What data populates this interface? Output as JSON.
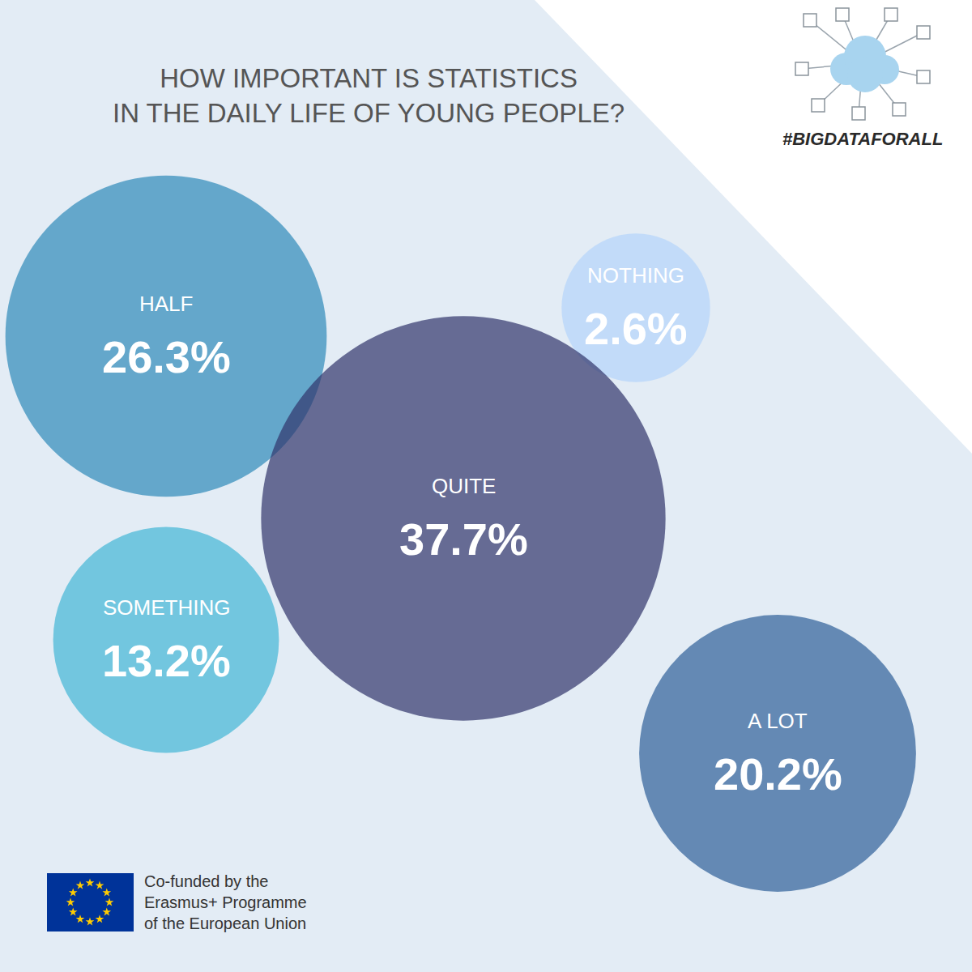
{
  "chart_data": {
    "type": "bubble",
    "title": "HOW IMPORTANT IS STATISTICS\nIN THE DAILY LIFE OF YOUNG PEOPLE?",
    "categories": [
      "HALF",
      "NOTHING",
      "QUITE",
      "SOMETHING",
      "A LOT"
    ],
    "values": [
      26.3,
      2.6,
      37.7,
      13.2,
      20.2
    ],
    "value_labels": [
      "26.3%",
      "2.6%",
      "37.7%",
      "13.2%",
      "20.2%"
    ],
    "colors": [
      "#2d8ab9",
      "#b3d4fb",
      "#30346b",
      "#42b6d6",
      "#2e5f99"
    ],
    "data_labels": true,
    "tick_labels": false,
    "annotations": [
      "#BIGDATAFORALL",
      "Co-funded by the\nErasmus+ Programme\nof the European Union"
    ]
  }
}
